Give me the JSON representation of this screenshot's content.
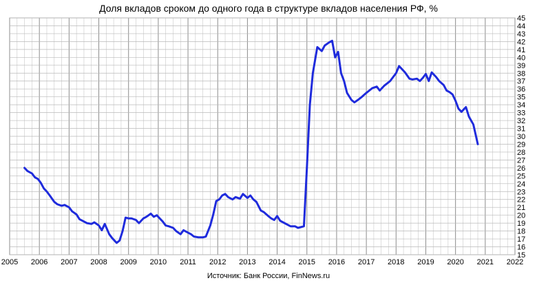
{
  "chart_data": {
    "type": "line",
    "title": "Доля вкладов сроком до одного года в структуре вкладов населения РФ, %",
    "source": "Источник: Банк России, FinNews.ru",
    "xlabel": "",
    "ylabel": "",
    "xlim": [
      2005,
      2022
    ],
    "ylim": [
      15,
      45
    ],
    "x_ticks": [
      "2005",
      "2006",
      "2007",
      "2008",
      "2009",
      "2010",
      "2011",
      "2012",
      "2013",
      "2014",
      "2015",
      "2016",
      "2017",
      "2018",
      "2019",
      "2020",
      "2021",
      "2022"
    ],
    "y_ticks": [
      "15",
      "16",
      "17",
      "18",
      "19",
      "20",
      "21",
      "22",
      "23",
      "24",
      "25",
      "26",
      "27",
      "28",
      "29",
      "30",
      "31",
      "32",
      "33",
      "34",
      "35",
      "36",
      "37",
      "38",
      "39",
      "40",
      "41",
      "42",
      "43",
      "44",
      "45"
    ],
    "grid": true,
    "y_axis_position": "right",
    "line_color": "#1f2bdc",
    "series": [
      {
        "x": [
          2005.5,
          2005.6,
          2005.75,
          2005.85,
          2005.95,
          2006.05,
          2006.15,
          2006.25,
          2006.35,
          2006.5,
          2006.6,
          2006.75,
          2006.85,
          2007.0,
          2007.1,
          2007.25,
          2007.35,
          2007.5,
          2007.6,
          2007.75,
          2007.85,
          2008.0,
          2008.1,
          2008.2,
          2008.35,
          2008.45,
          2008.6,
          2008.7,
          2008.8,
          2008.9,
          2009.0,
          2009.1,
          2009.25,
          2009.35,
          2009.5,
          2009.6,
          2009.75,
          2009.85,
          2009.95,
          2010.05,
          2010.15,
          2010.25,
          2010.35,
          2010.5,
          2010.6,
          2010.75,
          2010.85,
          2011.0,
          2011.1,
          2011.2,
          2011.35,
          2011.5,
          2011.6,
          2011.75,
          2011.85,
          2011.95,
          2012.05,
          2012.15,
          2012.25,
          2012.35,
          2012.5,
          2012.6,
          2012.75,
          2012.85,
          2013.0,
          2013.1,
          2013.2,
          2013.3,
          2013.45,
          2013.55,
          2013.7,
          2013.8,
          2013.9,
          2014.0,
          2014.1,
          2014.2,
          2014.35,
          2014.45,
          2014.6,
          2014.7,
          2014.8,
          2014.9,
          2015.0,
          2015.1,
          2015.2,
          2015.35,
          2015.5,
          2015.6,
          2015.75,
          2015.85,
          2015.95,
          2016.05,
          2016.15,
          2016.25,
          2016.35,
          2016.5,
          2016.6,
          2016.75,
          2016.85,
          2017.0,
          2017.1,
          2017.2,
          2017.35,
          2017.45,
          2017.6,
          2017.7,
          2017.8,
          2017.9,
          2018.0,
          2018.1,
          2018.2,
          2018.3,
          2018.45,
          2018.55,
          2018.7,
          2018.8,
          2018.9,
          2019.0,
          2019.1,
          2019.2,
          2019.35,
          2019.45,
          2019.6,
          2019.7,
          2019.8,
          2019.9,
          2020.0,
          2020.1,
          2020.2,
          2020.35,
          2020.45,
          2020.6,
          2020.75
        ],
        "values": [
          26.0,
          25.6,
          25.3,
          24.8,
          24.6,
          24.1,
          23.4,
          23.0,
          22.5,
          21.7,
          21.4,
          21.2,
          21.3,
          21.0,
          20.5,
          20.1,
          19.5,
          19.2,
          19.0,
          18.9,
          19.1,
          18.7,
          18.1,
          18.9,
          17.6,
          17.1,
          16.5,
          16.8,
          18.0,
          19.7,
          19.6,
          19.6,
          19.4,
          19.0,
          19.6,
          19.8,
          20.2,
          19.8,
          20.0,
          19.6,
          19.2,
          18.7,
          18.6,
          18.4,
          18.0,
          17.6,
          18.1,
          17.8,
          17.6,
          17.3,
          17.2,
          17.2,
          17.3,
          18.7,
          20.1,
          21.8,
          22.0,
          22.5,
          22.7,
          22.3,
          22.0,
          22.3,
          22.1,
          22.7,
          22.2,
          22.5,
          22.0,
          21.7,
          20.6,
          20.4,
          19.9,
          19.6,
          19.4,
          19.9,
          19.3,
          19.1,
          18.8,
          18.6,
          18.6,
          18.4,
          18.5,
          18.6,
          26.0,
          34.0,
          38.0,
          41.3,
          40.8,
          41.5,
          41.9,
          42.1,
          40.0,
          40.7,
          38.0,
          37.0,
          35.5,
          34.6,
          34.3,
          34.7,
          35.0,
          35.5,
          35.8,
          36.1,
          36.3,
          35.8,
          36.4,
          36.7,
          37.0,
          37.5,
          38.0,
          38.9,
          38.5,
          38.1,
          37.3,
          37.2,
          37.3,
          37.0,
          37.4,
          37.9,
          37.0,
          38.1,
          37.5,
          37.0,
          36.5,
          35.8,
          35.6,
          35.3,
          34.5,
          33.5,
          33.1,
          33.7,
          32.5,
          31.5,
          29.0
        ]
      }
    ]
  }
}
